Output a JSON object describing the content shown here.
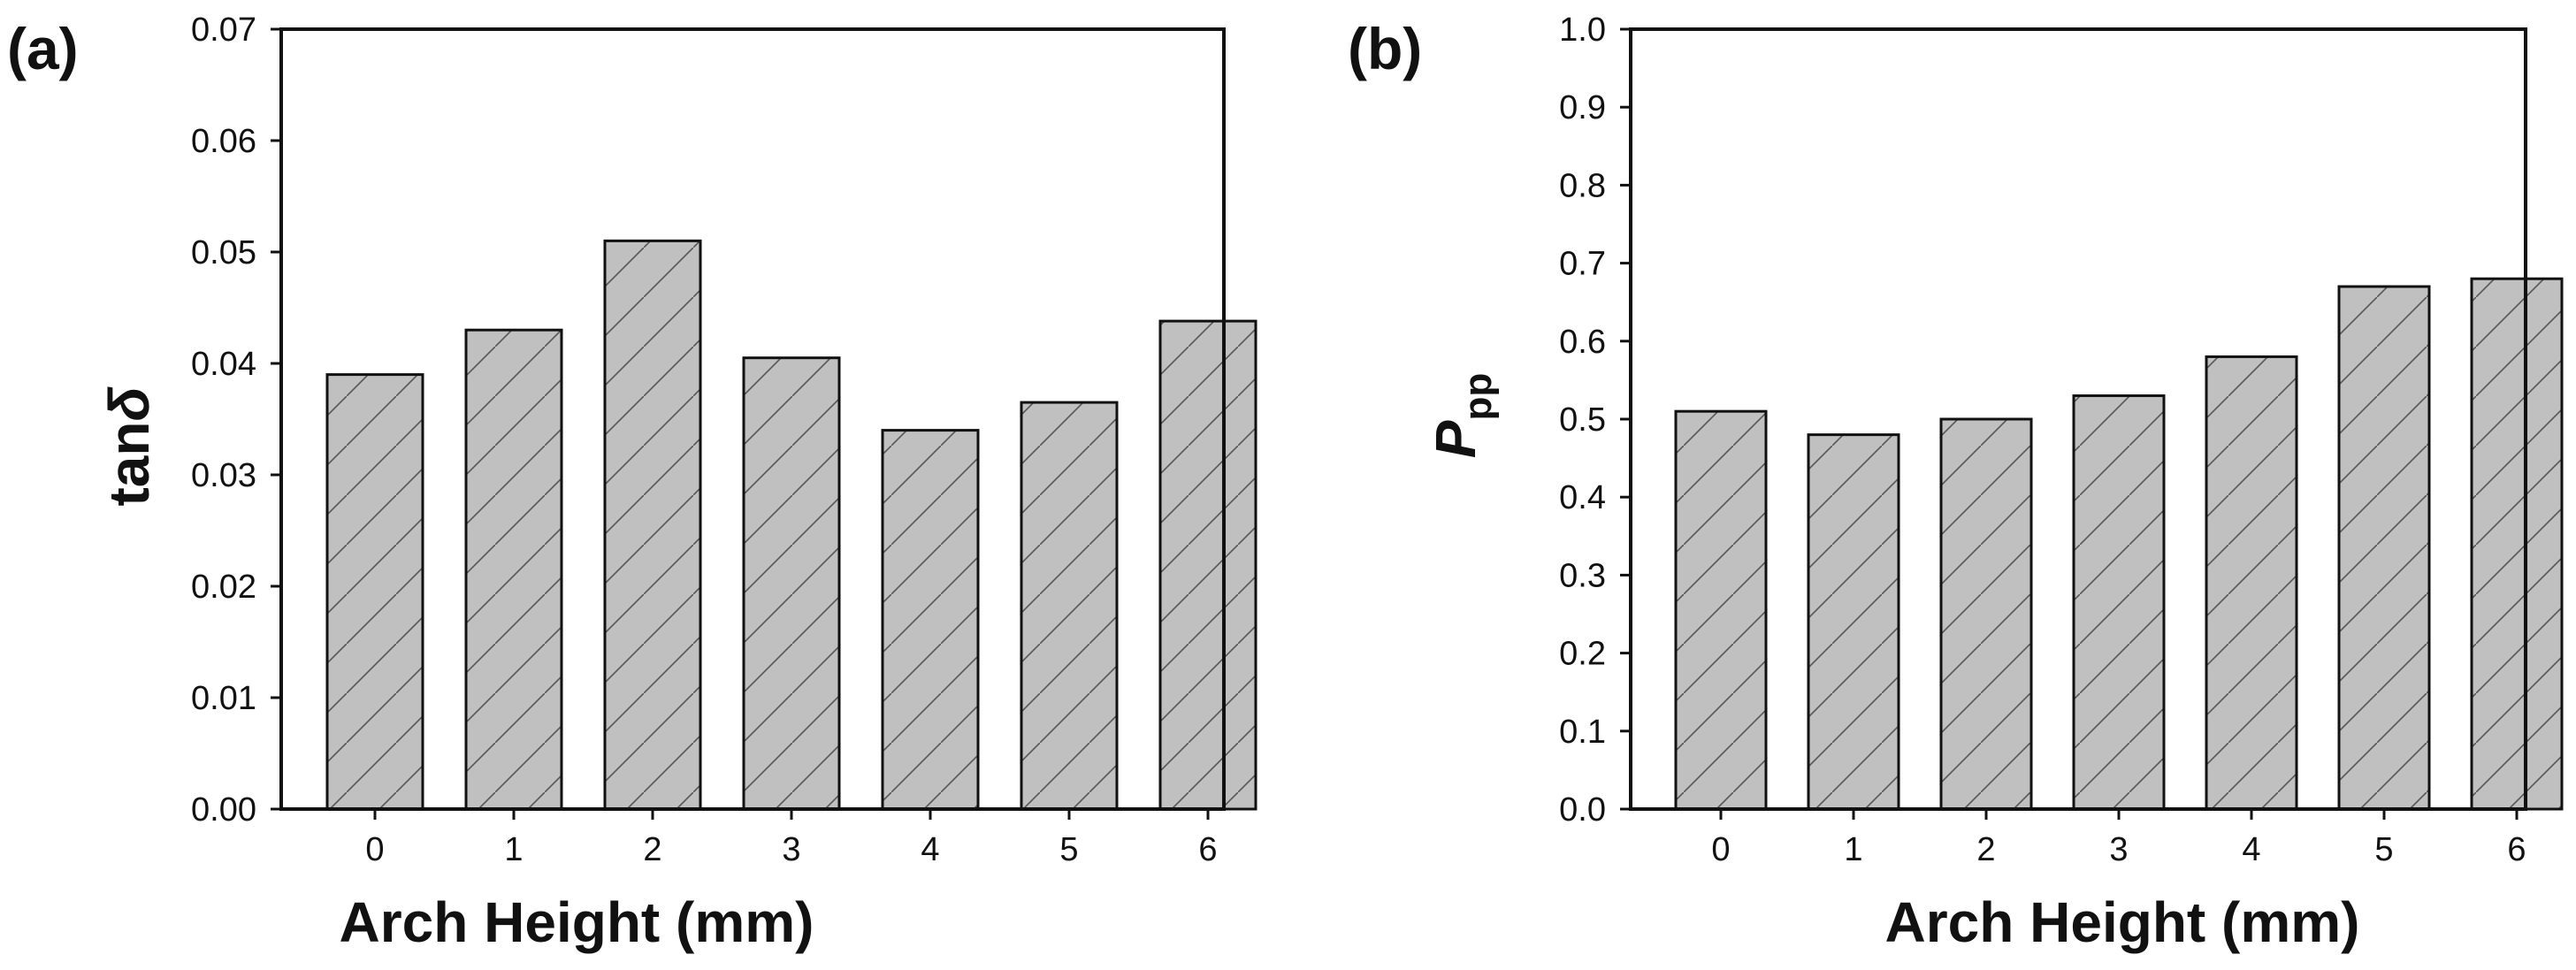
{
  "chart_data": [
    {
      "type": "bar",
      "panel_label": "(a)",
      "categories": [
        "0",
        "1",
        "2",
        "3",
        "4",
        "5",
        "6"
      ],
      "values": [
        0.039,
        0.043,
        0.051,
        0.0405,
        0.034,
        0.0365,
        0.0438
      ],
      "xlabel": "Arch Height (mm)",
      "ylabel": "tan",
      "ylabel_symbol": "δ",
      "ylim": [
        0,
        0.07
      ],
      "yticks": [
        "0.00",
        "0.01",
        "0.02",
        "0.03",
        "0.04",
        "0.05",
        "0.06",
        "0.07"
      ],
      "bar_color": "#c0c0c0",
      "grid": false
    },
    {
      "type": "bar",
      "panel_label": "(b)",
      "categories": [
        "0",
        "1",
        "2",
        "3",
        "4",
        "5",
        "6"
      ],
      "values": [
        0.51,
        0.48,
        0.5,
        0.53,
        0.58,
        0.67,
        0.68
      ],
      "xlabel": "Arch Height (mm)",
      "ylabel": "P",
      "ylabel_sub": "pp",
      "ylim": [
        0,
        1.0
      ],
      "yticks": [
        "0.0",
        "0.1",
        "0.2",
        "0.3",
        "0.4",
        "0.5",
        "0.6",
        "0.7",
        "0.8",
        "0.9",
        "1.0"
      ],
      "bar_color": "#c0c0c0",
      "grid": false
    }
  ]
}
